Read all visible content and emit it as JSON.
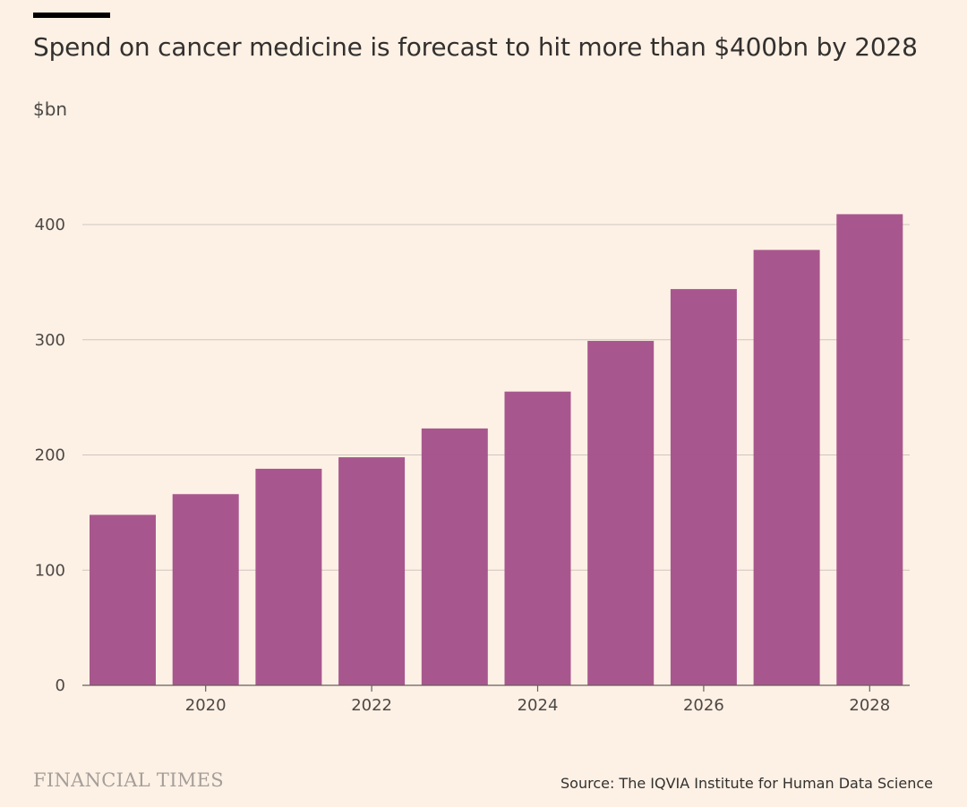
{
  "chart_data": {
    "type": "bar",
    "title": "Spend on cancer medicine is forecast to hit more than $400bn by 2028",
    "ylabel": "$bn",
    "xlabel": "",
    "categories": [
      "2019",
      "2020",
      "2021",
      "2022",
      "2023",
      "2024",
      "2025",
      "2026",
      "2027",
      "2028"
    ],
    "values": [
      148,
      166,
      188,
      198,
      223,
      255,
      299,
      344,
      378,
      409
    ],
    "x_tick_labels": [
      "2020",
      "2022",
      "2024",
      "2026",
      "2028"
    ],
    "y_ticks": [
      0,
      100,
      200,
      300,
      400
    ],
    "ylim": [
      0,
      400
    ],
    "grid": true,
    "bar_color": "#A5528A"
  },
  "footer": {
    "brand": "FINANCIAL TIMES",
    "source": "Source: The IQVIA Institute for Human Data Science"
  },
  "colors": {
    "background": "#FDF1E5",
    "text": "#33302E",
    "gridline": "#CEC6BE"
  }
}
